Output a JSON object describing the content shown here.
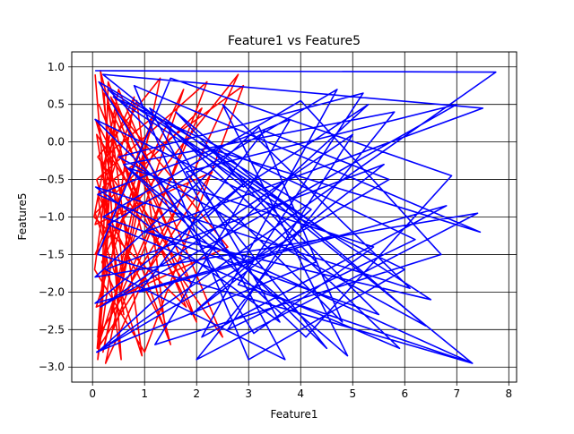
{
  "chart_data": {
    "type": "line",
    "title": "Feature1 vs Feature5",
    "xlabel": "Feature1",
    "ylabel": "Feature5",
    "xlim": [
      -0.4,
      8.15
    ],
    "ylim": [
      -3.2,
      1.2
    ],
    "x_ticks": [
      0,
      1,
      2,
      3,
      4,
      5,
      6,
      7,
      8
    ],
    "x_tick_labels": [
      "0",
      "1",
      "2",
      "3",
      "4",
      "5",
      "6",
      "7",
      "8"
    ],
    "y_ticks": [
      -3.0,
      -2.5,
      -2.0,
      -1.5,
      -1.0,
      -0.5,
      0.0,
      0.5,
      1.0
    ],
    "y_tick_labels": [
      "−3.0",
      "−2.5",
      "−2.0",
      "−1.5",
      "−1.0",
      "−0.5",
      "0.0",
      "0.5",
      "1.0"
    ],
    "grid": true,
    "legend": "none",
    "series": [
      {
        "color": "#ff0000",
        "x": [
          0.05,
          0.3,
          0.1,
          0.8,
          0.2,
          1.5,
          0.15,
          0.6,
          0.08,
          2.2,
          0.4,
          1.1,
          0.05,
          2.8,
          0.25,
          0.9,
          0.12,
          1.8,
          0.03,
          0.5,
          2.5,
          0.1,
          1.3,
          0.2,
          0.7,
          0.06,
          2.0,
          0.35,
          1.6,
          0.1,
          0.45,
          0.04,
          1.0,
          2.9,
          0.2,
          0.6,
          0.08,
          1.9,
          0.3,
          0.15,
          2.3,
          0.05,
          0.85,
          1.4,
          0.1,
          0.55,
          0.22,
          2.6,
          0.07,
          1.2,
          0.4,
          0.09,
          1.75,
          0.18,
          0.5,
          2.1,
          0.05,
          0.95,
          0.3,
          1.55
        ],
        "y": [
          0.9,
          -1.2,
          -2.9,
          0.6,
          -0.3,
          -2.7,
          0.95,
          -1.8,
          -0.5,
          0.8,
          -2.5,
          0.2,
          -1.5,
          0.9,
          -2.95,
          -0.8,
          0.5,
          -2.2,
          -1.0,
          0.7,
          -2.6,
          -0.2,
          0.85,
          -2.8,
          -1.3,
          0.3,
          -2.4,
          0.6,
          -0.9,
          -2.6,
          0.4,
          -1.7,
          -2.8,
          0.75,
          -0.6,
          -2.3,
          0.1,
          -1.9,
          0.8,
          -2.7,
          -0.4,
          -1.1,
          0.55,
          -2.5,
          -0.7,
          -2.9,
          0.65,
          -1.4,
          -2.2,
          0.35,
          -0.1,
          -2.75,
          0.7,
          -1.6,
          -2.1,
          0.45,
          -0.95,
          -2.85,
          0.5,
          -1.3
        ]
      },
      {
        "color": "#0000ff",
        "x": [
          0.05,
          7.75,
          0.1,
          5.3,
          2.9,
          0.2,
          7.5,
          1.0,
          6.5,
          0.3,
          4.8,
          3.2,
          0.05,
          7.4,
          2.0,
          5.8,
          0.6,
          4.1,
          6.9,
          1.5,
          0.1,
          7.3,
          3.5,
          0.4,
          6.2,
          2.6,
          5.0,
          0.15,
          7.0,
          1.8,
          4.5,
          0.05,
          6.0,
          3.0,
          0.8,
          7.45,
          2.3,
          5.5,
          0.2,
          4.0,
          6.7,
          1.2,
          3.8,
          0.1,
          7.3,
          2.8,
          5.2,
          0.5,
          6.4,
          1.6,
          4.3,
          0.08,
          5.7,
          3.3,
          0.9,
          6.8,
          2.1,
          4.7,
          0.3,
          5.9,
          1.4,
          3.6,
          0.06,
          6.1,
          2.5,
          4.9,
          0.7,
          5.4,
          3.1,
          0.12,
          4.2,
          1.9,
          5.6,
          0.25,
          3.7,
          1.1,
          4.6,
          0.05,
          3.0,
          2.2
        ],
        "y": [
          0.95,
          0.93,
          -2.8,
          0.5,
          -0.6,
          0.9,
          0.45,
          -1.2,
          -2.1,
          0.7,
          -2.4,
          0.2,
          -1.8,
          -0.95,
          -2.9,
          0.4,
          -0.3,
          -2.6,
          -0.45,
          0.85,
          -1.5,
          -2.95,
          -0.8,
          0.6,
          -1.3,
          -2.5,
          0.1,
          -2.2,
          0.5,
          -0.4,
          -2.75,
          0.3,
          -1.7,
          -2.9,
          0.75,
          -1.2,
          -0.1,
          -2.3,
          -1.0,
          0.55,
          -1.5,
          -2.7,
          0.3,
          -0.7,
          -2.95,
          -1.9,
          0.65,
          -0.2,
          -2.45,
          0.4,
          -1.6,
          -2.8,
          -0.5,
          0.15,
          -2.0,
          -0.85,
          -2.6,
          0.7,
          -1.1,
          -2.75,
          0.25,
          -2.4,
          -0.6,
          -1.95,
          0.5,
          -2.85,
          -0.35,
          -1.4,
          -2.55,
          0.8,
          -0.9,
          -2.3,
          -0.3,
          -1.7,
          -2.9,
          0.45,
          -1.25,
          -2.15,
          -0.5,
          -1.0
        ]
      }
    ]
  }
}
